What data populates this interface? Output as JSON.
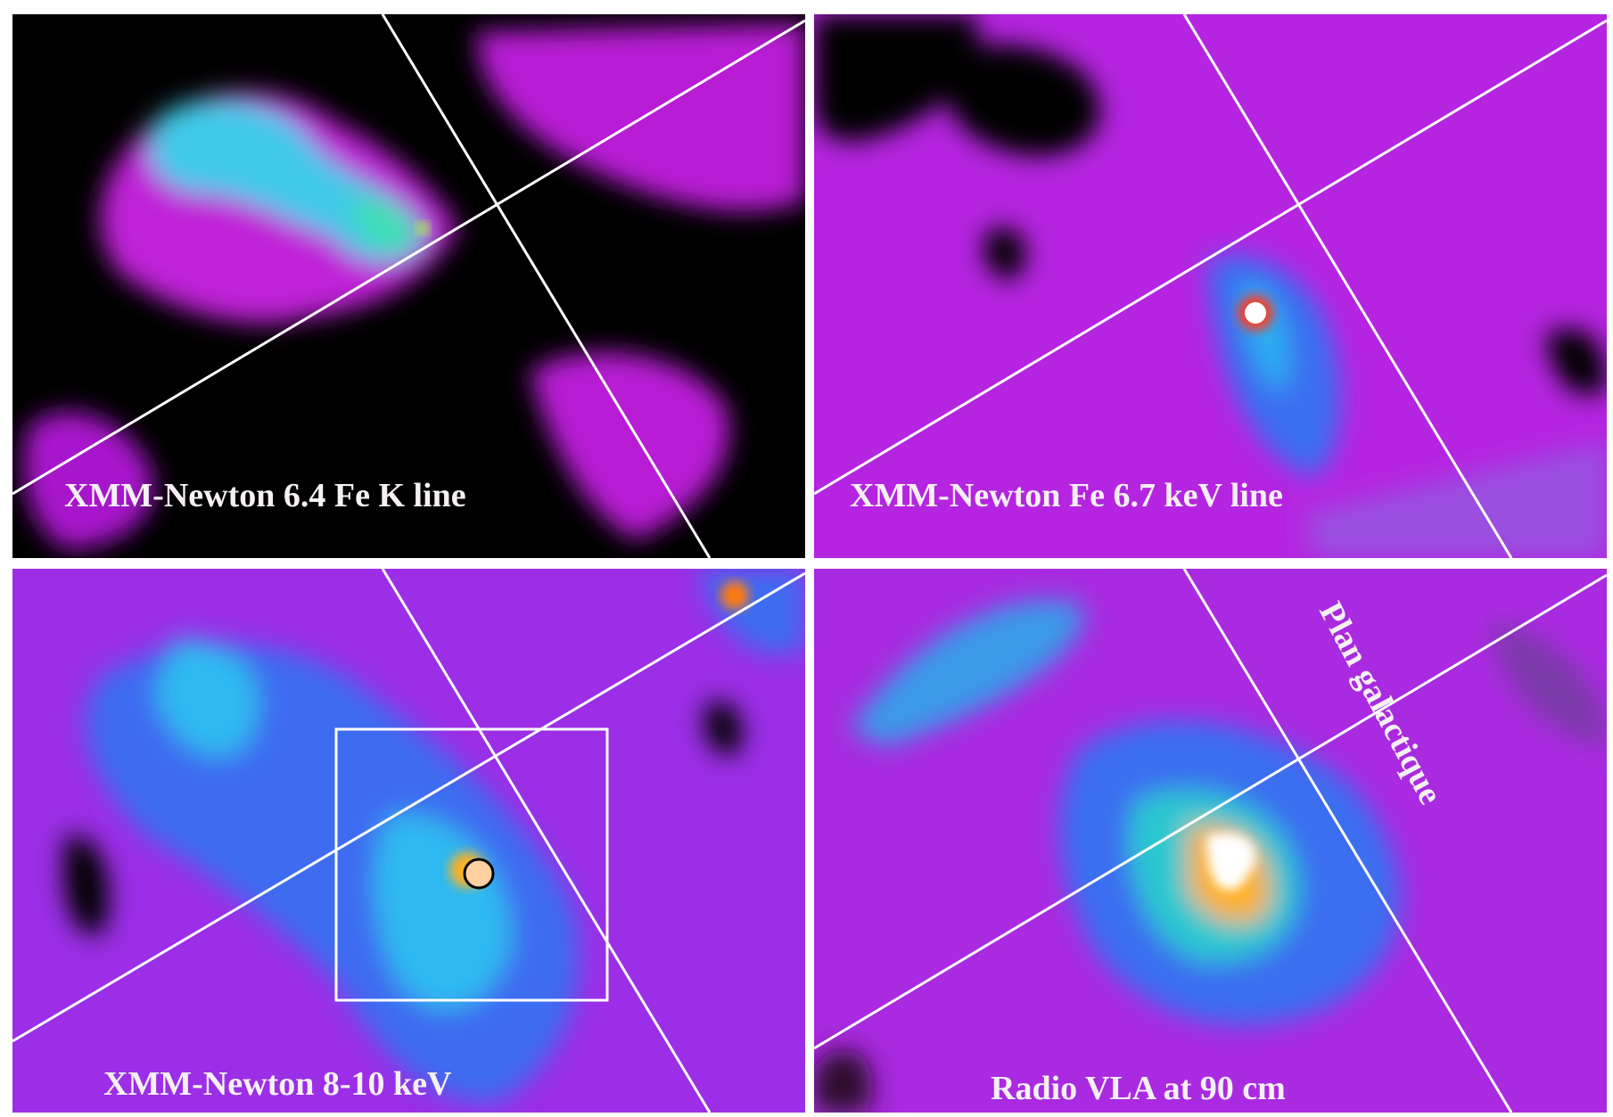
{
  "panels": [
    {
      "label": "XMM-Newton 6.4 Fe K line"
    },
    {
      "label": "XMM-Newton Fe 6.7 keV line"
    },
    {
      "label": "XMM-Newton 8-10 keV"
    },
    {
      "label": "Radio VLA at 90 cm"
    }
  ],
  "annotation": "Plan galactique"
}
